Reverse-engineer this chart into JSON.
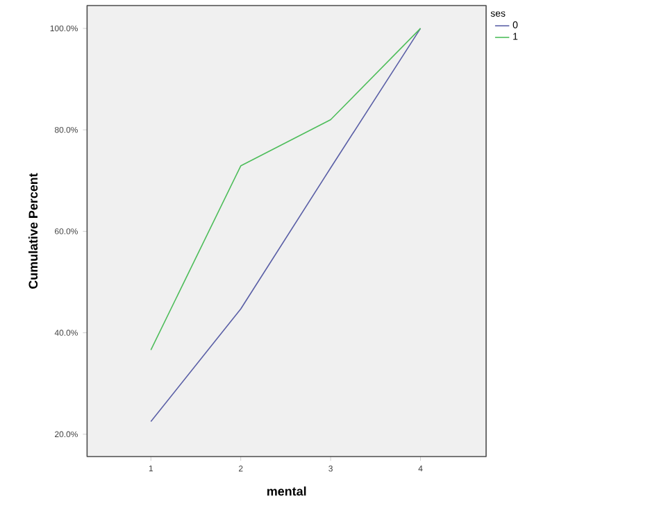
{
  "chart_data": {
    "type": "line",
    "xlabel": "mental",
    "ylabel": "Cumulative Percent",
    "legend_title": "ses",
    "xlim": [
      0.29,
      4.73
    ],
    "xticks": [
      1,
      2,
      3,
      4
    ],
    "ylim": [
      15.6,
      104.5
    ],
    "yticks": [
      {
        "value": 20,
        "label": "20.0%"
      },
      {
        "value": 40,
        "label": "40.0%"
      },
      {
        "value": 60,
        "label": "60.0%"
      },
      {
        "value": 80,
        "label": "80.0%"
      },
      {
        "value": 100,
        "label": "100.0%"
      }
    ],
    "x": [
      1,
      2,
      3,
      4
    ],
    "series": [
      {
        "name": "0",
        "color": "#5a5fa6",
        "values": [
          22.5,
          44.7,
          72.5,
          100
        ]
      },
      {
        "name": "1",
        "color": "#4dbd5a",
        "values": [
          36.6,
          72.9,
          82.0,
          100
        ]
      }
    ],
    "legend": "top right",
    "grid": false,
    "marker": "none",
    "line_style": "solid"
  }
}
